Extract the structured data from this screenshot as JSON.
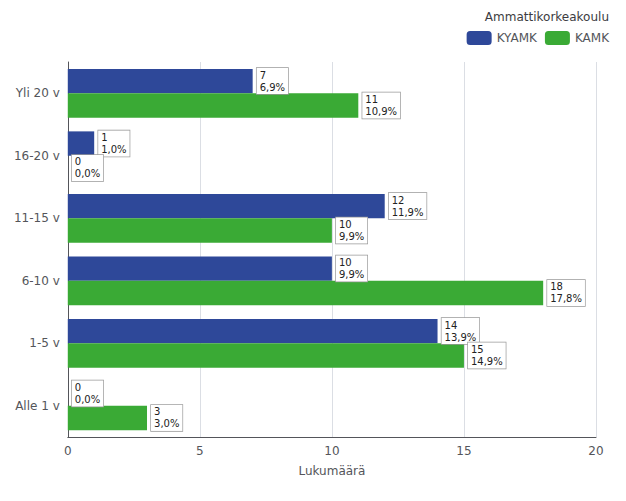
{
  "chart_data": {
    "type": "bar",
    "orientation": "horizontal",
    "categories": [
      "Alle 1 v",
      "1-5 v",
      "6-10 v",
      "11-15 v",
      "16-20 v",
      "Yli 20 v"
    ],
    "series": [
      {
        "name": "KYAMK",
        "color": "#2e4899",
        "values": [
          0,
          14,
          10,
          12,
          1,
          7
        ],
        "value_labels": [
          "0\n0,0%",
          "14\n13,9%",
          "10\n9,9%",
          "12\n11,9%",
          "1\n1,0%",
          "7\n6,9%"
        ]
      },
      {
        "name": "KAMK",
        "color": "#3aaa35",
        "values": [
          3,
          15,
          18,
          10,
          0,
          11
        ],
        "value_labels": [
          "3\n3,0%",
          "15\n14,9%",
          "18\n17,8%",
          "10\n9,9%",
          "0\n0,0%",
          "11\n10,9%"
        ]
      }
    ],
    "xlabel": "Lukumäärä",
    "legend_title": "Ammattikorkeakoulu",
    "xlim": [
      0,
      20
    ],
    "xticks": [
      0,
      5,
      10,
      15,
      20
    ],
    "grid": true,
    "legend": "upper right",
    "data_labels": true
  }
}
